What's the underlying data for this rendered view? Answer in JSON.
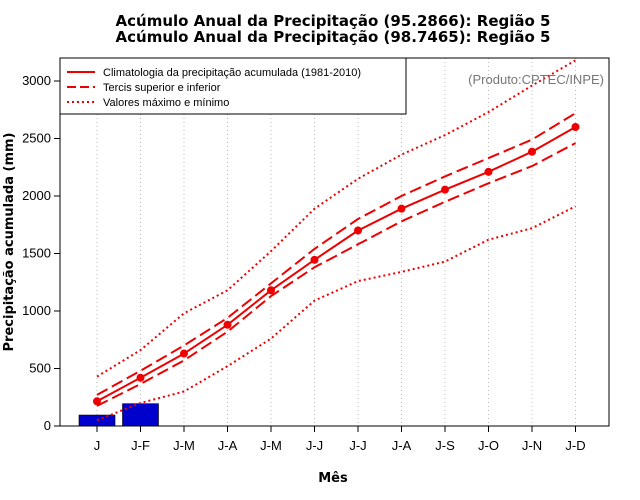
{
  "chart_data": {
    "type": "line",
    "title_line1": "Acúmulo Anual da Precipitação (95.2866): Região 5",
    "title_line2": "Acúmulo Anual da Precipitação (98.7465): Região 5",
    "xlabel": "Mês",
    "ylabel": "Precipitação acumulada (mm)",
    "credit": "(Produto:CPTEC/INPE)",
    "categories": [
      "J",
      "J-F",
      "J-M",
      "J-A",
      "J-M",
      "J-J",
      "J-J",
      "J-A",
      "J-S",
      "J-O",
      "J-N",
      "J-D"
    ],
    "ylim": [
      0,
      3200
    ],
    "yticks": [
      0,
      500,
      1000,
      1500,
      2000,
      2500,
      3000
    ],
    "grid": "vertical dotted",
    "legend_position": "top-left",
    "series": [
      {
        "name": "Climatologia da precipitação acumulada (1981-2010)",
        "style": "solid",
        "markers": true,
        "values": [
          215,
          420,
          630,
          880,
          1180,
          1445,
          1700,
          1890,
          2055,
          2210,
          2385,
          2600
        ]
      },
      {
        "name": "Tercis superior e inferior",
        "style": "dashed",
        "role": "upper",
        "values": [
          270,
          480,
          700,
          940,
          1240,
          1540,
          1800,
          2000,
          2170,
          2330,
          2490,
          2720
        ]
      },
      {
        "name": "Tercis superior e inferior",
        "style": "dashed",
        "role": "lower",
        "values": [
          175,
          365,
          570,
          820,
          1130,
          1380,
          1580,
          1780,
          1950,
          2110,
          2260,
          2460
        ]
      },
      {
        "name": "Valores máximo e mínimo",
        "style": "dotted",
        "role": "max",
        "values": [
          430,
          660,
          980,
          1180,
          1520,
          1890,
          2150,
          2360,
          2530,
          2730,
          2960,
          3180
        ]
      },
      {
        "name": "Valores máximo e mínimo",
        "style": "dotted",
        "role": "min",
        "values": [
          50,
          200,
          300,
          520,
          760,
          1090,
          1260,
          1340,
          1430,
          1620,
          1720,
          1910
        ]
      }
    ],
    "observed_bars": {
      "name": "Acúmulo Anual da Precipitação",
      "values": [
        95.2866,
        193.98
      ]
    },
    "colors": {
      "lines": "#ee0000",
      "bars": "#0000cc",
      "grid": "#bbbbbb",
      "credit": "#777777"
    }
  }
}
